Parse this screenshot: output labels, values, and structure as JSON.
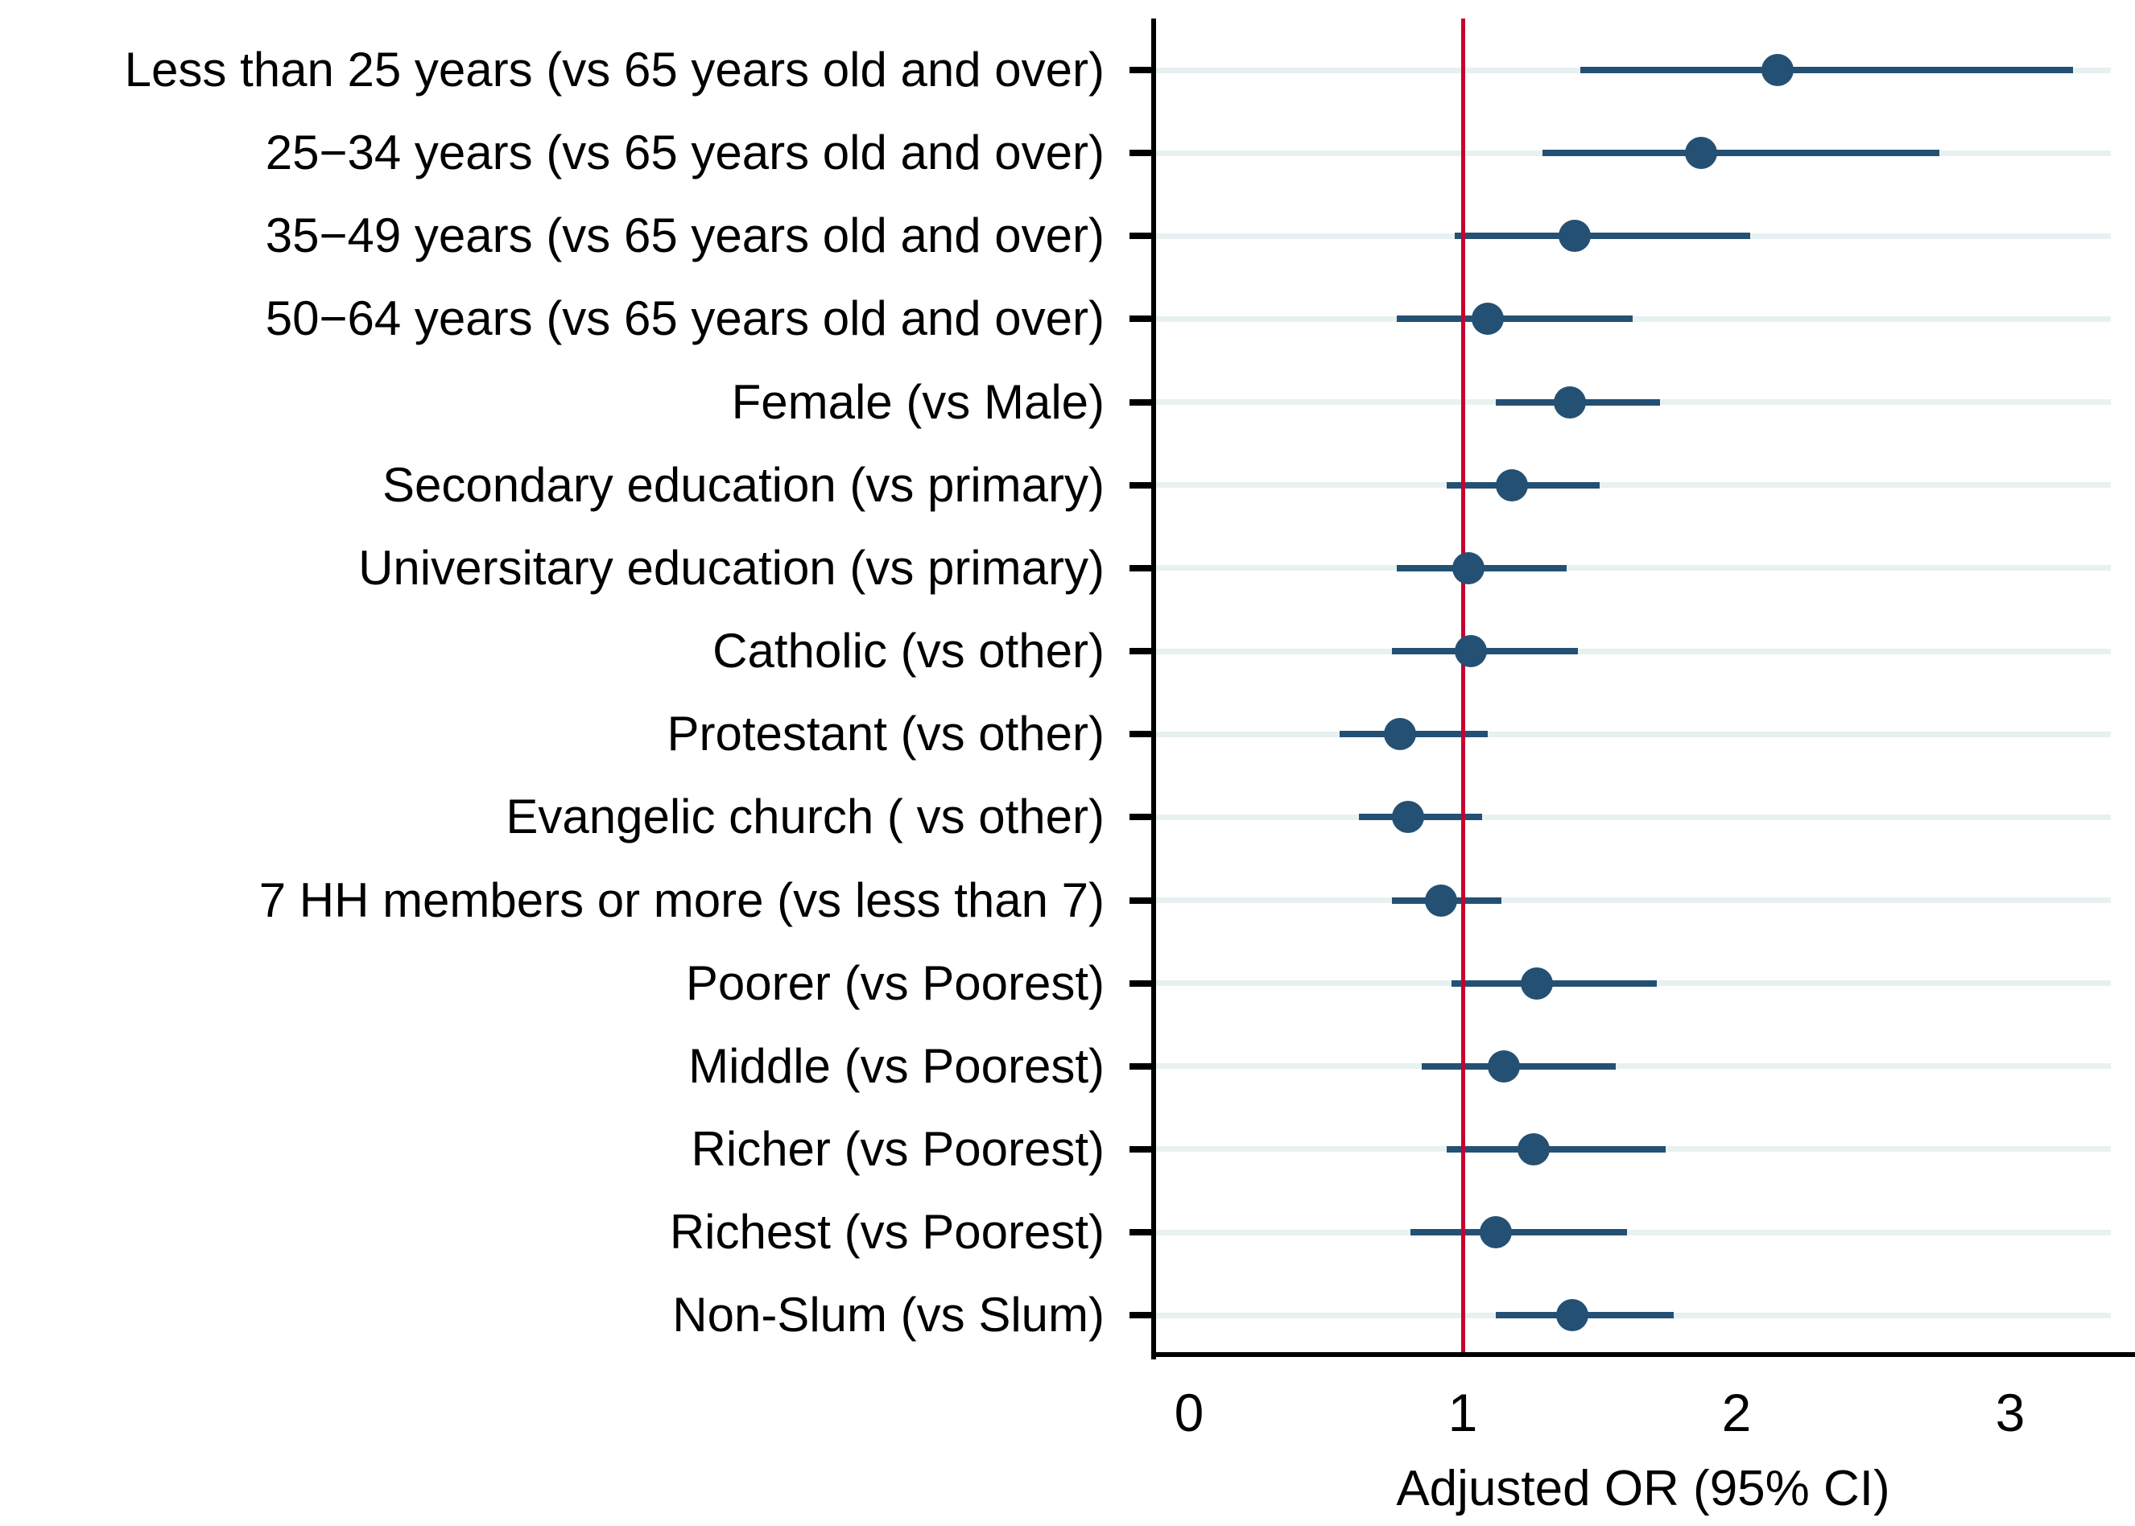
{
  "chart_data": {
    "type": "scatter",
    "subtype": "forest-plot",
    "title": "",
    "xlabel": "Adjusted OR (95% CI)",
    "ylabel": "",
    "x_ticks": [
      "0",
      "1",
      "2",
      "3"
    ],
    "xlim": [
      -0.13,
      3.46
    ],
    "reference_line_x": 1,
    "grid": "row-reference-lines",
    "legend": "none",
    "rows": [
      {
        "label": "Less than 25 years (vs 65 years old and over)",
        "or": 2.15,
        "ci_low": 1.43,
        "ci_high": 3.23
      },
      {
        "label": "25−34 years (vs 65 years old and over)",
        "or": 1.87,
        "ci_low": 1.29,
        "ci_high": 2.74
      },
      {
        "label": "35−49 years (vs 65 years old and over)",
        "or": 1.41,
        "ci_low": 0.97,
        "ci_high": 2.05
      },
      {
        "label": "50−64 years (vs 65 years old and over)",
        "or": 1.09,
        "ci_low": 0.76,
        "ci_high": 1.62
      },
      {
        "label": "Female (vs Male)",
        "or": 1.39,
        "ci_low": 1.12,
        "ci_high": 1.72
      },
      {
        "label": "Secondary education (vs primary)",
        "or": 1.18,
        "ci_low": 0.94,
        "ci_high": 1.5
      },
      {
        "label": "Universitary education (vs primary)",
        "or": 1.02,
        "ci_low": 0.76,
        "ci_high": 1.38
      },
      {
        "label": "Catholic (vs other)",
        "or": 1.03,
        "ci_low": 0.74,
        "ci_high": 1.42
      },
      {
        "label": "Protestant (vs other)",
        "or": 0.77,
        "ci_low": 0.55,
        "ci_high": 1.09
      },
      {
        "label": "Evangelic church ( vs other)",
        "or": 0.8,
        "ci_low": 0.62,
        "ci_high": 1.07
      },
      {
        "label": "7 HH members or more (vs less than 7)",
        "or": 0.92,
        "ci_low": 0.74,
        "ci_high": 1.14
      },
      {
        "label": "Poorer (vs Poorest)",
        "or": 1.27,
        "ci_low": 0.96,
        "ci_high": 1.71
      },
      {
        "label": "Middle (vs Poorest)",
        "or": 1.15,
        "ci_low": 0.85,
        "ci_high": 1.56
      },
      {
        "label": "Richer (vs Poorest)",
        "or": 1.26,
        "ci_low": 0.94,
        "ci_high": 1.74
      },
      {
        "label": "Richest (vs Poorest)",
        "or": 1.12,
        "ci_low": 0.81,
        "ci_high": 1.6
      },
      {
        "label": "Non-Slum (vs Slum)",
        "or": 1.4,
        "ci_low": 1.12,
        "ci_high": 1.77
      }
    ],
    "colors": {
      "marker": "#245073",
      "ci_line": "#245073",
      "reference_line": "#c80032",
      "row_line": "#e8f1f1",
      "axis": "#000000",
      "text": "#000000"
    }
  }
}
